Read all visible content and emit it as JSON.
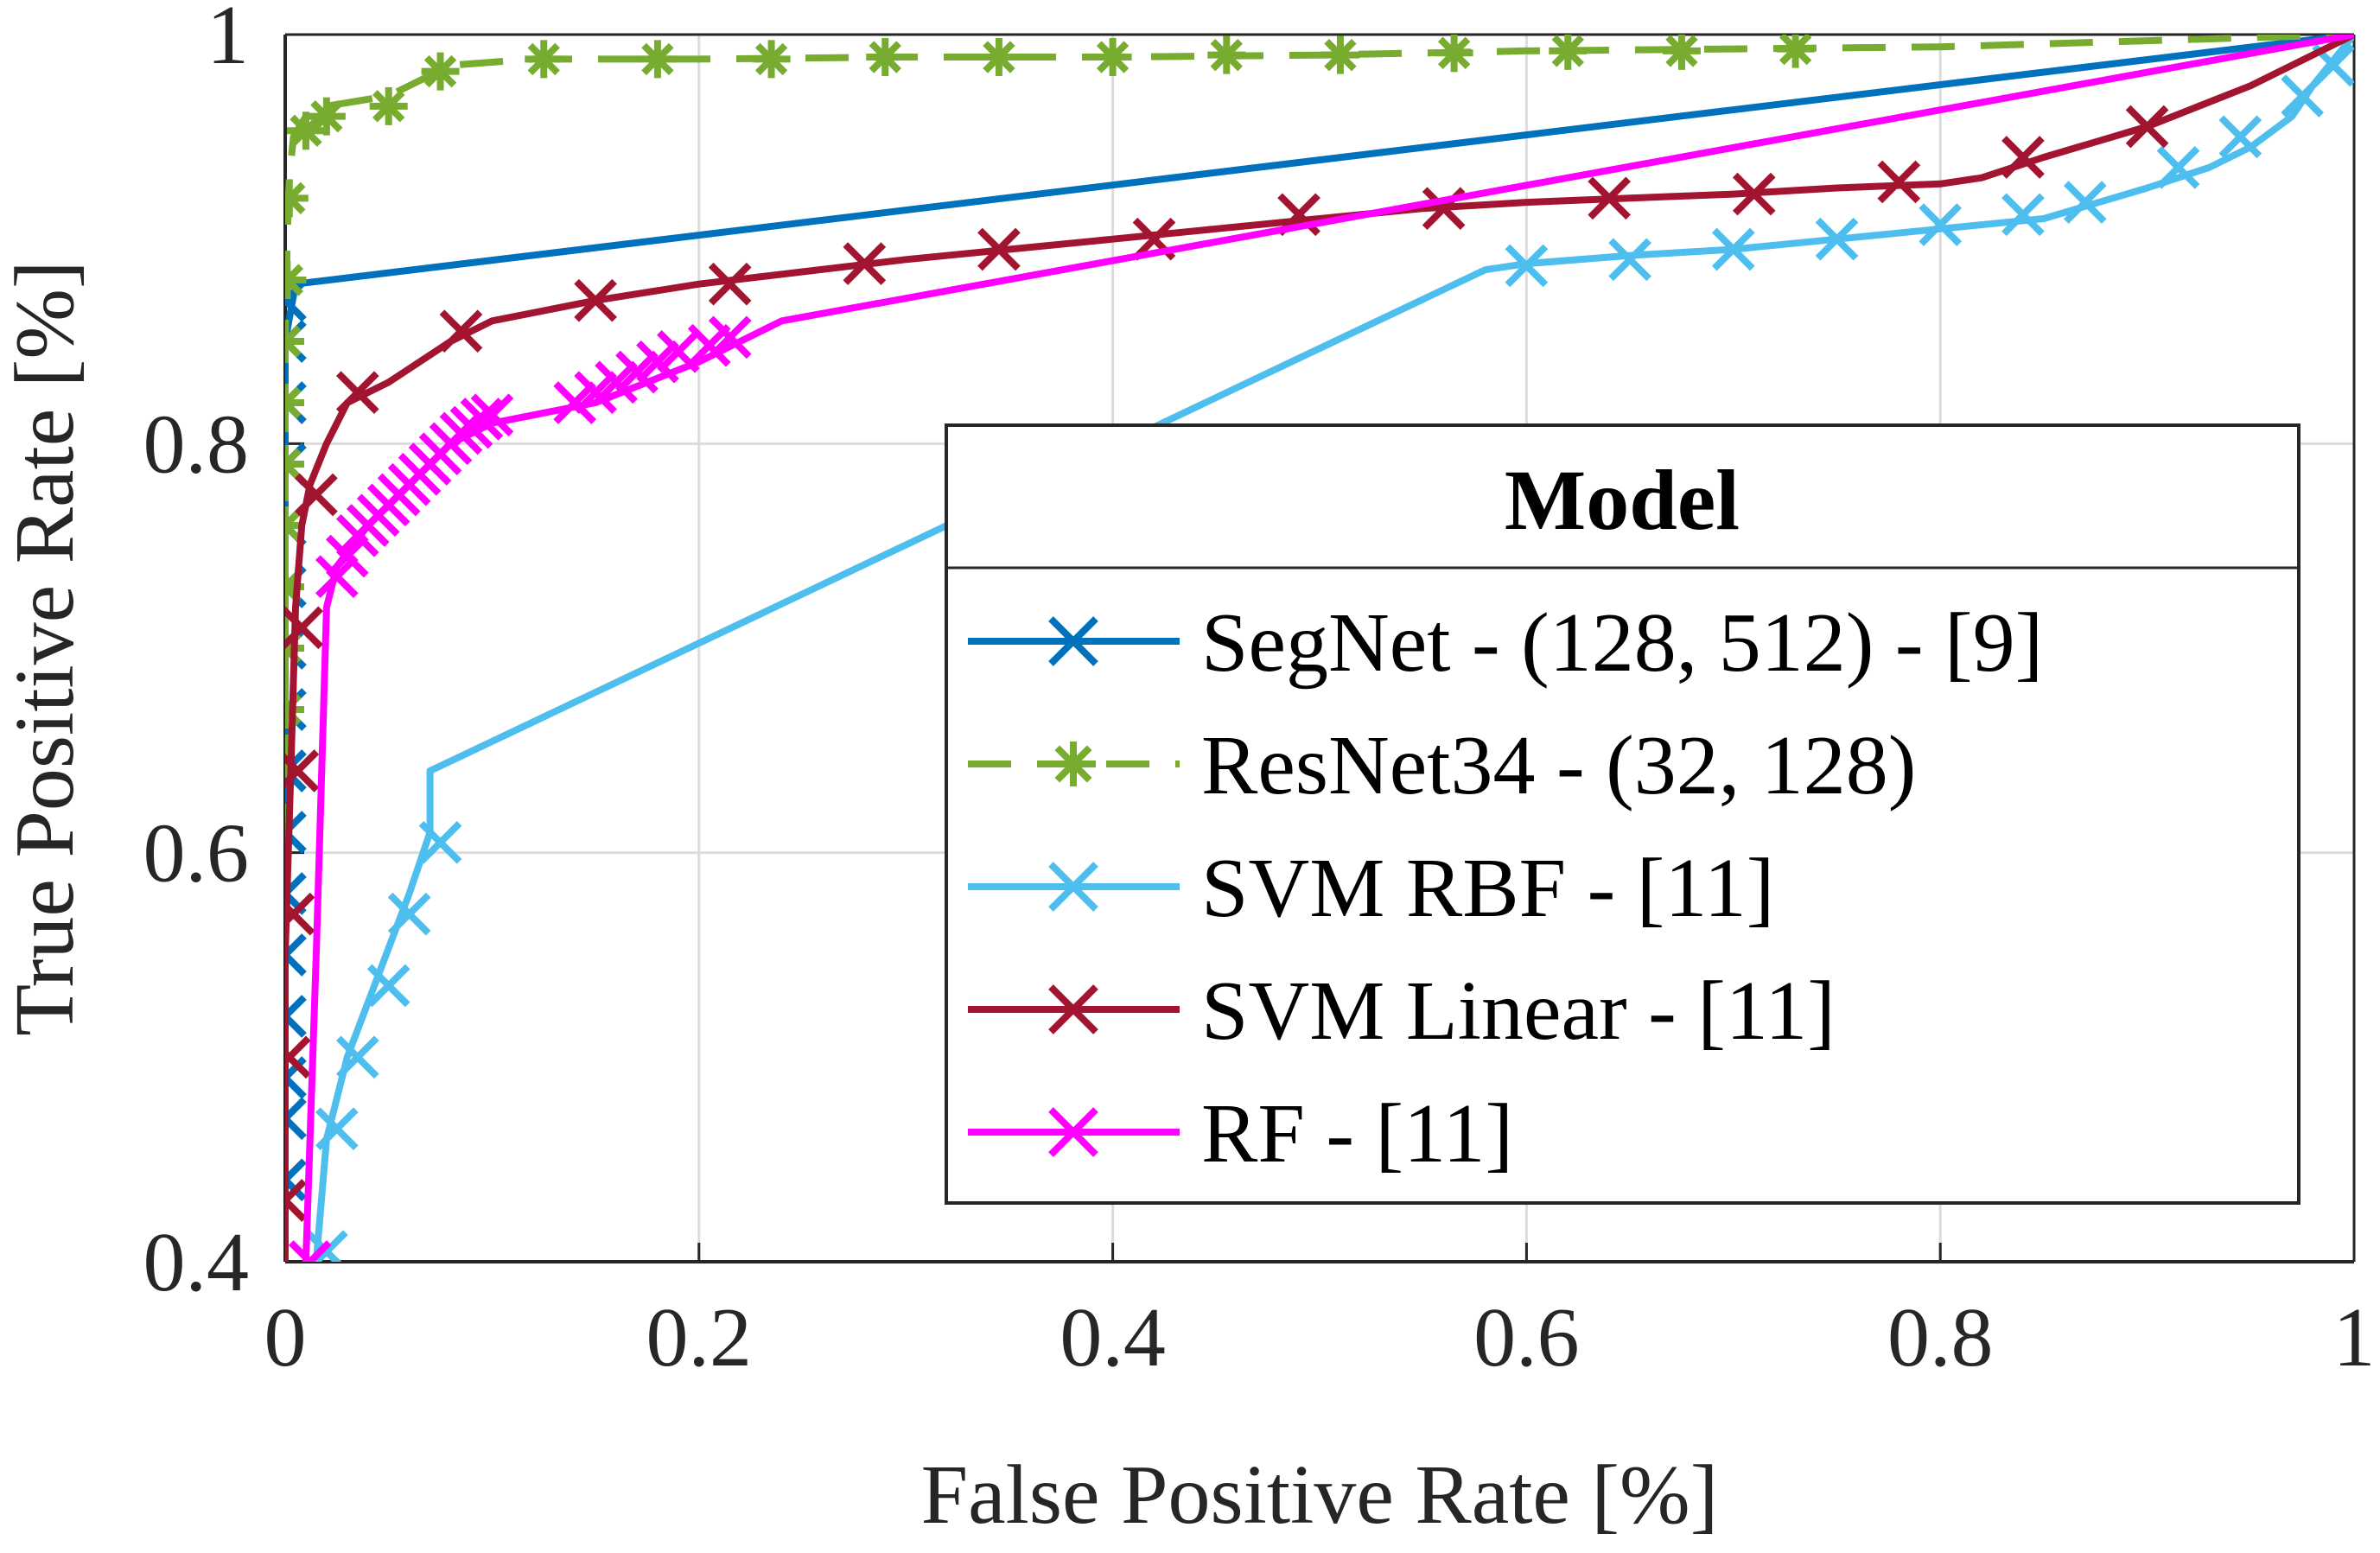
{
  "chart_data": {
    "type": "line",
    "title": "",
    "xlabel": "False Positive Rate [%]",
    "ylabel": "True Positive Rate [%]",
    "xlim": [
      0,
      1
    ],
    "ylim": [
      0.4,
      1
    ],
    "grid": true,
    "x_ticks": [
      0,
      0.2,
      0.4,
      0.6,
      0.8,
      1
    ],
    "x_tick_labels": [
      "0",
      "0.2",
      "0.4",
      "0.6",
      "0.8",
      "1"
    ],
    "y_ticks": [
      0.4,
      0.6,
      0.8,
      1
    ],
    "y_tick_labels": [
      "0.4",
      "0.6",
      "0.8",
      "1"
    ],
    "legend": {
      "title": "Model",
      "position": "lower-right"
    },
    "series": [
      {
        "name": "SegNet - (128, 512) - [9]",
        "color": "#0072BD",
        "line_style": "solid",
        "marker": "x",
        "x": [
          0,
          0,
          0,
          0,
          0,
          0,
          0,
          0,
          0,
          0,
          0,
          0,
          0,
          0,
          0,
          0,
          0.005,
          1
        ],
        "y": [
          0.4,
          0.43,
          0.46,
          0.49,
          0.52,
          0.55,
          0.58,
          0.61,
          0.64,
          0.67,
          0.7,
          0.73,
          0.76,
          0.79,
          0.82,
          0.85,
          0.878,
          1.0
        ],
        "marker_points": [
          [
            0,
            0.44
          ],
          [
            0,
            0.47
          ],
          [
            0,
            0.49
          ],
          [
            0,
            0.52
          ],
          [
            0,
            0.55
          ],
          [
            0,
            0.58
          ],
          [
            0,
            0.61
          ],
          [
            0,
            0.64
          ],
          [
            0,
            0.67
          ],
          [
            0,
            0.7
          ],
          [
            0,
            0.73
          ],
          [
            0,
            0.76
          ],
          [
            0,
            0.79
          ],
          [
            0,
            0.82
          ],
          [
            0,
            0.85
          ],
          [
            0,
            0.87
          ]
        ]
      },
      {
        "name": "ResNet34 - (32, 128)",
        "color": "#77AC30",
        "line_style": "dashed",
        "marker": "asterisk",
        "x": [
          0,
          0,
          0,
          0,
          0.001,
          0.002,
          0.004,
          0.01,
          0.02,
          0.05,
          0.08,
          0.12,
          0.2,
          0.3,
          0.4,
          0.5,
          0.6,
          0.7,
          0.8,
          1.0
        ],
        "y": [
          0.4,
          0.6,
          0.75,
          0.85,
          0.9,
          0.93,
          0.95,
          0.96,
          0.965,
          0.97,
          0.985,
          0.988,
          0.988,
          0.989,
          0.989,
          0.99,
          0.992,
          0.993,
          0.994,
          1.0
        ],
        "marker_points": [
          [
            0,
            0.67
          ],
          [
            0,
            0.7
          ],
          [
            0,
            0.73
          ],
          [
            0,
            0.76
          ],
          [
            0,
            0.79
          ],
          [
            0,
            0.82
          ],
          [
            0,
            0.85
          ],
          [
            0.001,
            0.88
          ],
          [
            0.002,
            0.92
          ],
          [
            0.01,
            0.953
          ],
          [
            0.02,
            0.96
          ],
          [
            0.05,
            0.965
          ],
          [
            0.075,
            0.982
          ],
          [
            0.125,
            0.988
          ],
          [
            0.18,
            0.988
          ],
          [
            0.235,
            0.988
          ],
          [
            0.29,
            0.989
          ],
          [
            0.345,
            0.989
          ],
          [
            0.4,
            0.989
          ],
          [
            0.455,
            0.99
          ],
          [
            0.51,
            0.99
          ],
          [
            0.565,
            0.991
          ],
          [
            0.62,
            0.992
          ],
          [
            0.675,
            0.992
          ],
          [
            0.73,
            0.993
          ]
        ]
      },
      {
        "name": "SVM RBF - [11]",
        "color": "#4DBEEE",
        "line_style": "solid",
        "marker": "x",
        "x": [
          0.015,
          0.02,
          0.03,
          0.045,
          0.06,
          0.07,
          0.07,
          0.58,
          0.6,
          0.65,
          0.7,
          0.75,
          0.8,
          0.85,
          0.9,
          0.93,
          0.95,
          0.97,
          0.98,
          1.0
        ],
        "y": [
          0.4,
          0.46,
          0.5,
          0.54,
          0.58,
          0.61,
          0.64,
          0.885,
          0.888,
          0.892,
          0.895,
          0.9,
          0.905,
          0.91,
          0.925,
          0.935,
          0.945,
          0.96,
          0.975,
          1.0
        ],
        "marker_points": [
          [
            0.02,
            0.405
          ],
          [
            0.025,
            0.465
          ],
          [
            0.035,
            0.5
          ],
          [
            0.05,
            0.535
          ],
          [
            0.06,
            0.57
          ],
          [
            0.075,
            0.605
          ],
          [
            0.6,
            0.887
          ],
          [
            0.65,
            0.89
          ],
          [
            0.7,
            0.895
          ],
          [
            0.75,
            0.9
          ],
          [
            0.8,
            0.907
          ],
          [
            0.84,
            0.912
          ],
          [
            0.87,
            0.918
          ],
          [
            0.915,
            0.935
          ],
          [
            0.945,
            0.95
          ],
          [
            0.975,
            0.97
          ],
          [
            0.99,
            0.985
          ]
        ]
      },
      {
        "name": "SVM Linear - [11]",
        "color": "#A2142F",
        "line_style": "solid",
        "marker": "x",
        "x": [
          0,
          0,
          0.003,
          0.005,
          0.008,
          0.012,
          0.02,
          0.03,
          0.05,
          0.08,
          0.1,
          0.15,
          0.2,
          0.25,
          0.3,
          0.35,
          0.4,
          0.45,
          0.5,
          0.55,
          0.6,
          0.65,
          0.7,
          0.75,
          0.8,
          0.82,
          0.85,
          0.9,
          0.95,
          1.0
        ],
        "y": [
          0.4,
          0.55,
          0.65,
          0.72,
          0.76,
          0.78,
          0.8,
          0.82,
          0.83,
          0.85,
          0.86,
          0.87,
          0.878,
          0.884,
          0.89,
          0.895,
          0.9,
          0.905,
          0.91,
          0.915,
          0.918,
          0.92,
          0.922,
          0.925,
          0.927,
          0.93,
          0.94,
          0.955,
          0.975,
          1.0
        ],
        "marker_points": [
          [
            0,
            0.43
          ],
          [
            0.002,
            0.5
          ],
          [
            0.004,
            0.57
          ],
          [
            0.006,
            0.64
          ],
          [
            0.008,
            0.71
          ],
          [
            0.015,
            0.775
          ],
          [
            0.035,
            0.825
          ],
          [
            0.085,
            0.855
          ],
          [
            0.15,
            0.87
          ],
          [
            0.215,
            0.878
          ],
          [
            0.28,
            0.888
          ],
          [
            0.345,
            0.895
          ],
          [
            0.42,
            0.9
          ],
          [
            0.49,
            0.912
          ],
          [
            0.56,
            0.915
          ],
          [
            0.64,
            0.92
          ],
          [
            0.71,
            0.922
          ],
          [
            0.78,
            0.928
          ],
          [
            0.84,
            0.94
          ],
          [
            0.9,
            0.955
          ]
        ]
      },
      {
        "name": "RF - [11]",
        "color": "#FF00FF",
        "line_style": "solid",
        "marker": "x",
        "x": [
          0.01,
          0.015,
          0.02,
          0.025,
          0.04,
          0.06,
          0.08,
          0.1,
          0.15,
          0.2,
          0.24,
          1.0
        ],
        "y": [
          0.4,
          0.55,
          0.72,
          0.74,
          0.76,
          0.78,
          0.8,
          0.81,
          0.82,
          0.84,
          0.86,
          1.0
        ],
        "marker_points": [
          [
            0.012,
            0.4
          ],
          [
            0.025,
            0.735
          ],
          [
            0.03,
            0.745
          ],
          [
            0.035,
            0.755
          ],
          [
            0.04,
            0.76
          ],
          [
            0.045,
            0.765
          ],
          [
            0.05,
            0.77
          ],
          [
            0.055,
            0.775
          ],
          [
            0.06,
            0.78
          ],
          [
            0.065,
            0.785
          ],
          [
            0.07,
            0.79
          ],
          [
            0.075,
            0.795
          ],
          [
            0.08,
            0.8
          ],
          [
            0.085,
            0.805
          ],
          [
            0.09,
            0.808
          ],
          [
            0.095,
            0.812
          ],
          [
            0.1,
            0.814
          ],
          [
            0.14,
            0.82
          ],
          [
            0.15,
            0.825
          ],
          [
            0.16,
            0.83
          ],
          [
            0.17,
            0.835
          ],
          [
            0.18,
            0.84
          ],
          [
            0.19,
            0.845
          ],
          [
            0.205,
            0.848
          ],
          [
            0.215,
            0.852
          ]
        ]
      }
    ]
  }
}
